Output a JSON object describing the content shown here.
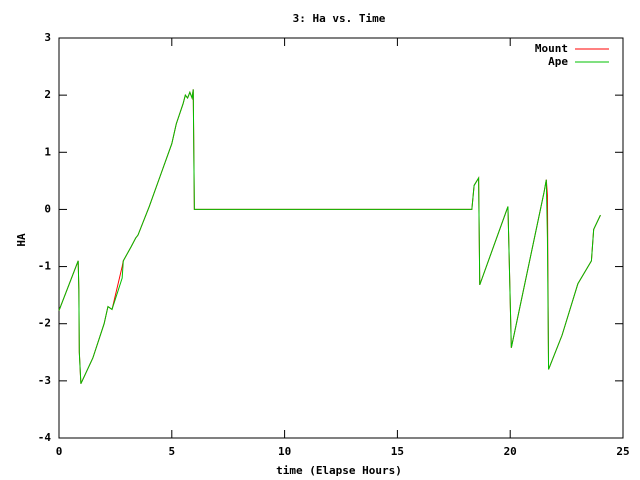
{
  "chart_data": {
    "type": "line",
    "title": "3: Ha vs. Time",
    "x_label": "time (Elapse Hours)",
    "y_label": "HA",
    "x": [
      0,
      0.85,
      0.88,
      0.9,
      0.97,
      1.5,
      2.0,
      2.17,
      2.35,
      2.8,
      2.85,
      3.2,
      3.4,
      3.5,
      4.0,
      4.5,
      5.0,
      5.2,
      5.5,
      5.6,
      5.7,
      5.8,
      5.9,
      5.95,
      6.0,
      18.3,
      18.4,
      18.6,
      18.65,
      19.9,
      20.05,
      21.5,
      21.6,
      21.65,
      21.7,
      22.3,
      23.0,
      23.6,
      23.7,
      24.0
    ],
    "series": [
      {
        "name": "Mount",
        "color": "#ff0000",
        "values": [
          -1.77,
          -0.9,
          -1.4,
          -2.5,
          -3.05,
          -2.6,
          -2.0,
          -1.7,
          -1.75,
          -1.0,
          -0.9,
          -0.65,
          -0.5,
          -0.45,
          0.05,
          0.6,
          1.15,
          1.5,
          1.85,
          2.0,
          1.95,
          2.05,
          1.95,
          2.1,
          0.0,
          0.0,
          0.42,
          0.55,
          -1.32,
          0.05,
          -2.42,
          0.3,
          0.52,
          0.25,
          -2.8,
          -2.2,
          -1.3,
          -0.9,
          -0.35,
          -0.1
        ]
      },
      {
        "name": "Ape",
        "color": "#00c000",
        "values": [
          -1.77,
          -0.9,
          -1.4,
          -2.5,
          -3.05,
          -2.6,
          -2.0,
          -1.7,
          -1.75,
          -1.2,
          -0.9,
          -0.65,
          -0.5,
          -0.45,
          0.05,
          0.6,
          1.15,
          1.5,
          1.85,
          2.0,
          1.95,
          2.05,
          1.95,
          2.1,
          0.0,
          0.0,
          0.42,
          0.55,
          -1.32,
          0.05,
          -2.42,
          0.3,
          0.52,
          -0.5,
          -2.8,
          -2.2,
          -1.3,
          -0.9,
          -0.35,
          -0.1
        ]
      }
    ],
    "xlim": [
      0,
      25
    ],
    "xticks": [
      0,
      5,
      10,
      15,
      20,
      25
    ],
    "ylim": [
      -4,
      3
    ],
    "yticks": [
      -4,
      -3,
      -2,
      -1,
      0,
      1,
      2,
      3
    ],
    "grid": false,
    "legend": "top-right"
  }
}
